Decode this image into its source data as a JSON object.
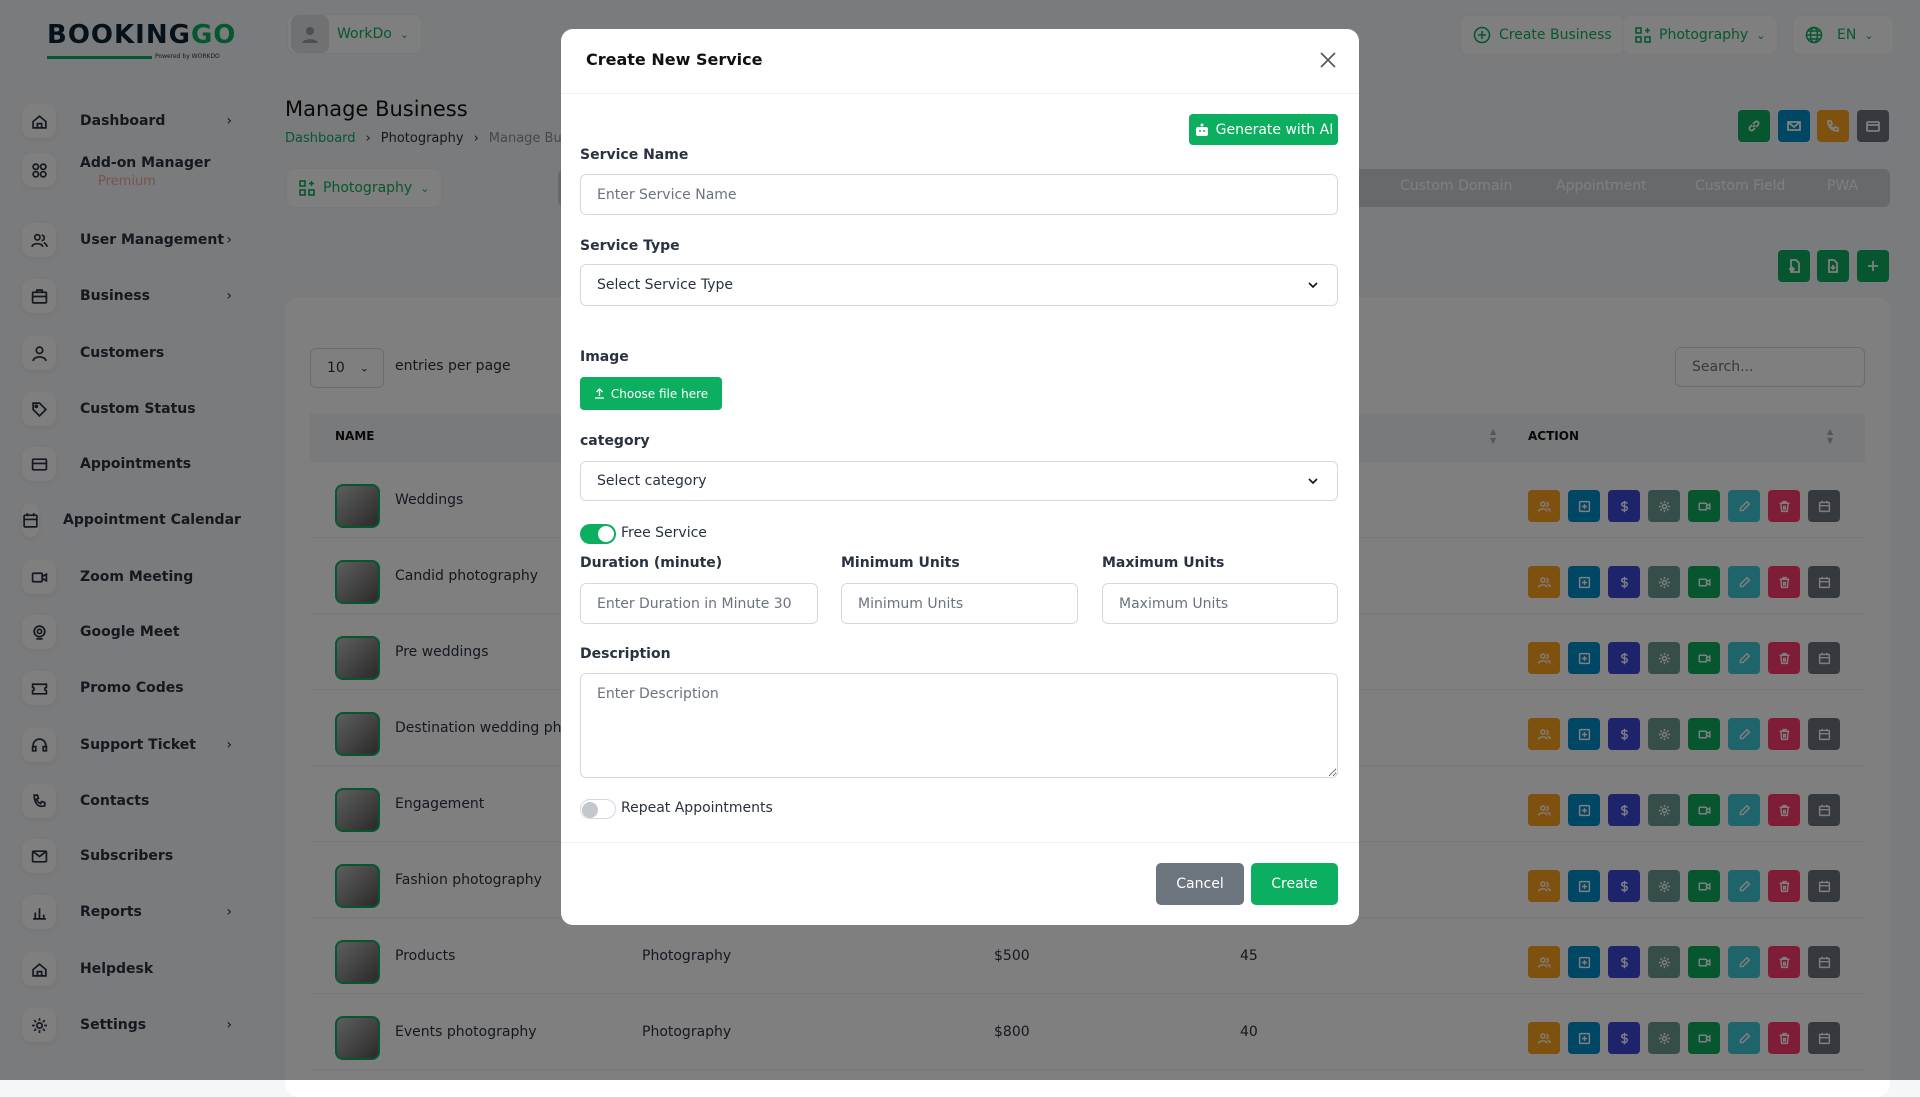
{
  "brand": {
    "name_dark": "BOOKING",
    "name_green": "GO",
    "powered": "Powered by WORKDO"
  },
  "header": {
    "workspace": "WorkDo",
    "create_business": "Create Business",
    "business_select": "Photography",
    "language": "EN"
  },
  "sidebar": {
    "items": [
      {
        "label": "Dashboard",
        "icon": "home-icon",
        "chevron": true
      },
      {
        "label": "Add-on Manager",
        "icon": "grid-icon",
        "chevron": false,
        "badge": "Premium"
      },
      {
        "label": "User Management",
        "icon": "users-icon",
        "chevron": true
      },
      {
        "label": "Business",
        "icon": "briefcase-icon",
        "chevron": true
      },
      {
        "label": "Customers",
        "icon": "user-icon",
        "chevron": false
      },
      {
        "label": "Custom Status",
        "icon": "tag-icon",
        "chevron": false
      },
      {
        "label": "Appointments",
        "icon": "card-icon",
        "chevron": false
      },
      {
        "label": "Appointment Calendar",
        "icon": "calendar-icon",
        "chevron": false
      },
      {
        "label": "Zoom Meeting",
        "icon": "video-icon",
        "chevron": false
      },
      {
        "label": "Google Meet",
        "icon": "meet-icon",
        "chevron": false
      },
      {
        "label": "Promo Codes",
        "icon": "ticket-icon",
        "chevron": false
      },
      {
        "label": "Support Ticket",
        "icon": "headset-icon",
        "chevron": true
      },
      {
        "label": "Contacts",
        "icon": "phone-icon",
        "chevron": false
      },
      {
        "label": "Subscribers",
        "icon": "mail-icon",
        "chevron": false
      },
      {
        "label": "Reports",
        "icon": "chart-icon",
        "chevron": true
      },
      {
        "label": "Helpdesk",
        "icon": "home-icon",
        "chevron": false
      },
      {
        "label": "Settings",
        "icon": "gear-icon",
        "chevron": true
      }
    ]
  },
  "page": {
    "title": "Manage Business",
    "breadcrumb": [
      "Dashboard",
      "Photography",
      "Manage Bus"
    ],
    "business_dropdown": "Photography",
    "tabs": [
      "Custom Domain",
      "Appointment",
      "Custom Field",
      "PWA"
    ]
  },
  "table": {
    "entries_value": "10",
    "entries_label": "entries per page",
    "search_placeholder": "Search...",
    "headers": {
      "name": "NAME",
      "action": "ACTION"
    },
    "rows": [
      {
        "name": "Weddings"
      },
      {
        "name": "Candid photography"
      },
      {
        "name": "Pre weddings"
      },
      {
        "name": "Destination wedding phot"
      },
      {
        "name": "Engagement"
      },
      {
        "name": "Fashion photography"
      },
      {
        "name": "Products",
        "category": "Photography",
        "price": "$500",
        "duration": "45"
      },
      {
        "name": "Events photography",
        "category": "Photography",
        "price": "$800",
        "duration": "40"
      }
    ],
    "action_buttons": [
      {
        "icon": "users-icon",
        "color": "#ffa21d"
      },
      {
        "icon": "plus-square-icon",
        "color": "#008ecc"
      },
      {
        "icon": "dollar-icon",
        "color": "#3b49d8"
      },
      {
        "icon": "gear-icon",
        "color": "#6b9c95"
      },
      {
        "icon": "video-icon",
        "color": "#0caf60"
      },
      {
        "icon": "pencil-icon",
        "color": "#3ec9d6"
      },
      {
        "icon": "trash-icon",
        "color": "#ff3a6e"
      },
      {
        "icon": "calendar-icon",
        "color": "#6c757d"
      }
    ]
  },
  "modal": {
    "title": "Create New Service",
    "generate_ai": "Generate with AI",
    "service_name_label": "Service Name",
    "service_name_placeholder": "Enter Service Name",
    "service_type_label": "Service Type",
    "service_type_value": "Select Service Type",
    "image_label": "Image",
    "choose_file": "Choose file here",
    "category_label": "category",
    "category_value": "Select category",
    "free_service_label": "Free Service",
    "free_service_on": true,
    "duration_label": "Duration (minute)",
    "duration_placeholder": "Enter Duration in Minute 30",
    "min_units_label": "Minimum Units",
    "min_units_placeholder": "Minimum Units",
    "max_units_label": "Maximum Units",
    "max_units_placeholder": "Maximum Units",
    "description_label": "Description",
    "description_placeholder": "Enter Description",
    "repeat_label": "Repeat Appointments",
    "repeat_on": false,
    "cancel": "Cancel",
    "create": "Create"
  },
  "colors": {
    "accent": "#0caf60",
    "cancel": "#6c757d"
  }
}
